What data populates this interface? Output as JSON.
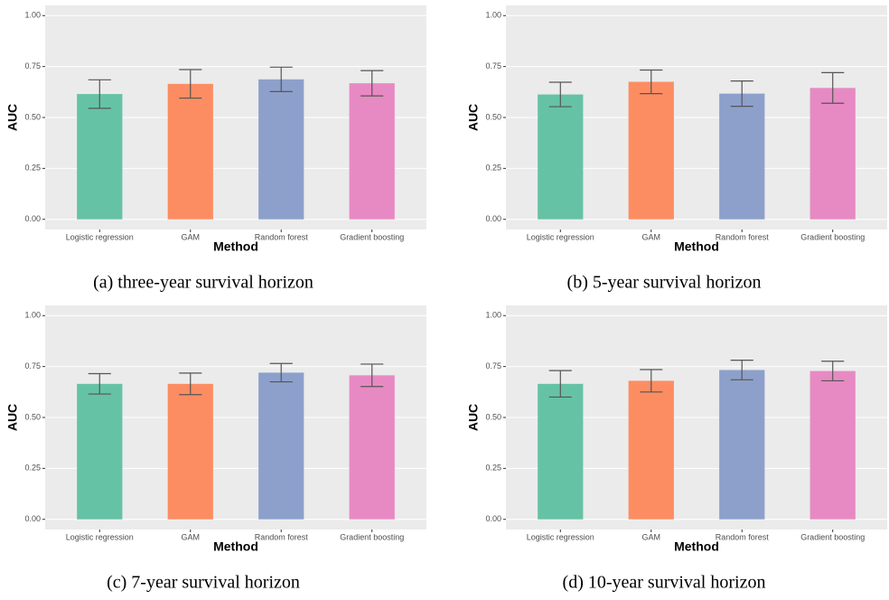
{
  "chart_data": [
    {
      "type": "bar",
      "caption": "(a) three-year survival horizon",
      "xlabel": "Method",
      "ylabel": "AUC",
      "categories": [
        "Logistic regression",
        "GAM",
        "Random forest",
        "Gradient boosting"
      ],
      "values": [
        0.615,
        0.665,
        0.687,
        0.668
      ],
      "errors": [
        0.07,
        0.07,
        0.06,
        0.062
      ],
      "colors": [
        "#66c2a5",
        "#fc8d62",
        "#8da0cb",
        "#e78ac3"
      ],
      "ylim": [
        -0.05,
        1.05
      ],
      "yticks": [
        {
          "value": 0,
          "label": "0.00"
        },
        {
          "value": 0.25,
          "label": "0.25"
        },
        {
          "value": 0.5,
          "label": "0.50"
        },
        {
          "value": 0.75,
          "label": "0.75"
        },
        {
          "value": 1,
          "label": "1.00"
        }
      ],
      "grid": true
    },
    {
      "type": "bar",
      "caption": "(b) 5-year survival horizon",
      "xlabel": "Method",
      "ylabel": "AUC",
      "categories": [
        "Logistic regression",
        "GAM",
        "Random forest",
        "Gradient boosting"
      ],
      "values": [
        0.613,
        0.675,
        0.617,
        0.645
      ],
      "errors": [
        0.06,
        0.058,
        0.062,
        0.075
      ],
      "colors": [
        "#66c2a5",
        "#fc8d62",
        "#8da0cb",
        "#e78ac3"
      ],
      "ylim": [
        -0.05,
        1.05
      ],
      "yticks": [
        {
          "value": 0,
          "label": "0.00"
        },
        {
          "value": 0.25,
          "label": "0.25"
        },
        {
          "value": 0.5,
          "label": "0.50"
        },
        {
          "value": 0.75,
          "label": "0.75"
        },
        {
          "value": 1,
          "label": "1.00"
        }
      ],
      "grid": true
    },
    {
      "type": "bar",
      "caption": "(c) 7-year survival horizon",
      "xlabel": "Method",
      "ylabel": "AUC",
      "categories": [
        "Logistic regression",
        "GAM",
        "Random forest",
        "Gradient boosting"
      ],
      "values": [
        0.665,
        0.665,
        0.72,
        0.707
      ],
      "errors": [
        0.05,
        0.053,
        0.045,
        0.055
      ],
      "colors": [
        "#66c2a5",
        "#fc8d62",
        "#8da0cb",
        "#e78ac3"
      ],
      "ylim": [
        -0.05,
        1.05
      ],
      "yticks": [
        {
          "value": 0,
          "label": "0.00"
        },
        {
          "value": 0.25,
          "label": "0.25"
        },
        {
          "value": 0.5,
          "label": "0.50"
        },
        {
          "value": 0.75,
          "label": "0.75"
        },
        {
          "value": 1,
          "label": "1.00"
        }
      ],
      "grid": true
    },
    {
      "type": "bar",
      "caption": "(d) 10-year survival horizon",
      "xlabel": "Method",
      "ylabel": "AUC",
      "categories": [
        "Logistic regression",
        "GAM",
        "Random forest",
        "Gradient boosting"
      ],
      "values": [
        0.665,
        0.68,
        0.733,
        0.728
      ],
      "errors": [
        0.065,
        0.055,
        0.048,
        0.048
      ],
      "colors": [
        "#66c2a5",
        "#fc8d62",
        "#8da0cb",
        "#e78ac3"
      ],
      "ylim": [
        -0.05,
        1.05
      ],
      "yticks": [
        {
          "value": 0,
          "label": "0.00"
        },
        {
          "value": 0.25,
          "label": "0.25"
        },
        {
          "value": 0.5,
          "label": "0.50"
        },
        {
          "value": 0.75,
          "label": "0.75"
        },
        {
          "value": 1,
          "label": "1.00"
        }
      ],
      "grid": true
    }
  ]
}
